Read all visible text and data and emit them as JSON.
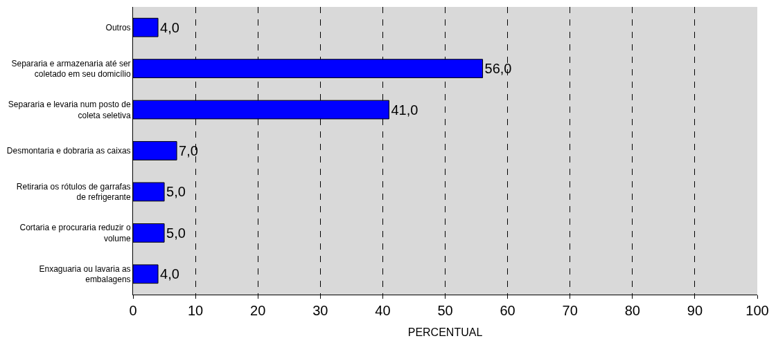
{
  "chart_data": {
    "type": "bar",
    "orientation": "horizontal",
    "xlabel": "PERCENTUAL",
    "categories": [
      "Outros",
      "Separaria e armazenaria até ser coletado em seu domicílio",
      "Separaria e levaria num posto de coleta seletiva",
      "Desmontaria e dobraria as caixas",
      "Retiraria os rótulos de garrafas de refrigerante",
      "Cortaria e procuraria reduzir o volume",
      "Enxaguaria ou lavaria as embalagens"
    ],
    "values": [
      4,
      56,
      41,
      7,
      5,
      5,
      4
    ],
    "value_labels": [
      "4,0",
      "56,0",
      "41,0",
      "7,0",
      "5,0",
      "5,0",
      "4,0"
    ],
    "color": "#0000ff",
    "xlim": [
      0,
      100
    ],
    "xticks": [
      0,
      10,
      20,
      30,
      40,
      50,
      60,
      70,
      80,
      90,
      100
    ],
    "grid": "x",
    "legend": false
  }
}
